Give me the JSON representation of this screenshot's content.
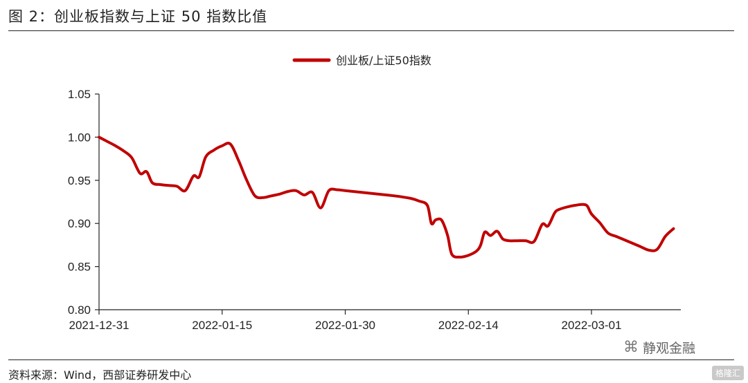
{
  "figure": {
    "title": "图 2：创业板指数与上证 50 指数比值",
    "source": "资料来源：Wind，西部证券研发中心",
    "watermark": "静观金融",
    "watermark_icon": "wechat-icon",
    "corner_badge": "格隆汇"
  },
  "chart_data": {
    "type": "line",
    "legend_position": "top-center",
    "grid": false,
    "ylim": [
      0.8,
      1.05
    ],
    "y_ticks": [
      "0.80",
      "0.85",
      "0.90",
      "0.95",
      "1.00",
      "1.05"
    ],
    "x_tick_labels": [
      "2021-12-31",
      "2022-01-15",
      "2022-01-30",
      "2022-02-14",
      "2022-03-01"
    ],
    "x_tick_days": [
      0,
      15,
      30,
      45,
      60
    ],
    "x_range_days": [
      0,
      70
    ],
    "series": [
      {
        "name": "创业板/上证50指数",
        "color": "#c00000",
        "points": [
          [
            0,
            1.0
          ],
          [
            1,
            0.995
          ],
          [
            2,
            0.99
          ],
          [
            3,
            0.984
          ],
          [
            4,
            0.976
          ],
          [
            5,
            0.958
          ],
          [
            5.8,
            0.96
          ],
          [
            6.5,
            0.947
          ],
          [
            7.5,
            0.945
          ],
          [
            8.5,
            0.944
          ],
          [
            9.5,
            0.943
          ],
          [
            10.5,
            0.938
          ],
          [
            11.5,
            0.955
          ],
          [
            12.2,
            0.954
          ],
          [
            13,
            0.977
          ],
          [
            14,
            0.985
          ],
          [
            15,
            0.99
          ],
          [
            16,
            0.992
          ],
          [
            17,
            0.973
          ],
          [
            18,
            0.95
          ],
          [
            19,
            0.932
          ],
          [
            20,
            0.93
          ],
          [
            21,
            0.932
          ],
          [
            22,
            0.934
          ],
          [
            23,
            0.937
          ],
          [
            24,
            0.938
          ],
          [
            25,
            0.933
          ],
          [
            26,
            0.936
          ],
          [
            27,
            0.918
          ],
          [
            28,
            0.938
          ],
          [
            29,
            0.939
          ],
          [
            30,
            0.938
          ],
          [
            32,
            0.936
          ],
          [
            34,
            0.934
          ],
          [
            36,
            0.932
          ],
          [
            38,
            0.929
          ],
          [
            39,
            0.926
          ],
          [
            40,
            0.921
          ],
          [
            40.5,
            0.9
          ],
          [
            41,
            0.904
          ],
          [
            41.6,
            0.905
          ],
          [
            42,
            0.899
          ],
          [
            42.5,
            0.885
          ],
          [
            43,
            0.864
          ],
          [
            44,
            0.861
          ],
          [
            45,
            0.863
          ],
          [
            46,
            0.868
          ],
          [
            46.5,
            0.875
          ],
          [
            47,
            0.89
          ],
          [
            47.7,
            0.886
          ],
          [
            48.5,
            0.891
          ],
          [
            49.2,
            0.882
          ],
          [
            50,
            0.88
          ],
          [
            51,
            0.88
          ],
          [
            52,
            0.88
          ],
          [
            53,
            0.879
          ],
          [
            54,
            0.899
          ],
          [
            54.7,
            0.897
          ],
          [
            55.5,
            0.912
          ],
          [
            56,
            0.916
          ],
          [
            57,
            0.919
          ],
          [
            58,
            0.921
          ],
          [
            59,
            0.922
          ],
          [
            59.5,
            0.92
          ],
          [
            60,
            0.911
          ],
          [
            61,
            0.901
          ],
          [
            62,
            0.889
          ],
          [
            63,
            0.885
          ],
          [
            64,
            0.881
          ],
          [
            65,
            0.877
          ],
          [
            66,
            0.873
          ],
          [
            67,
            0.869
          ],
          [
            68,
            0.87
          ],
          [
            69,
            0.885
          ],
          [
            70,
            0.894
          ]
        ]
      }
    ]
  }
}
